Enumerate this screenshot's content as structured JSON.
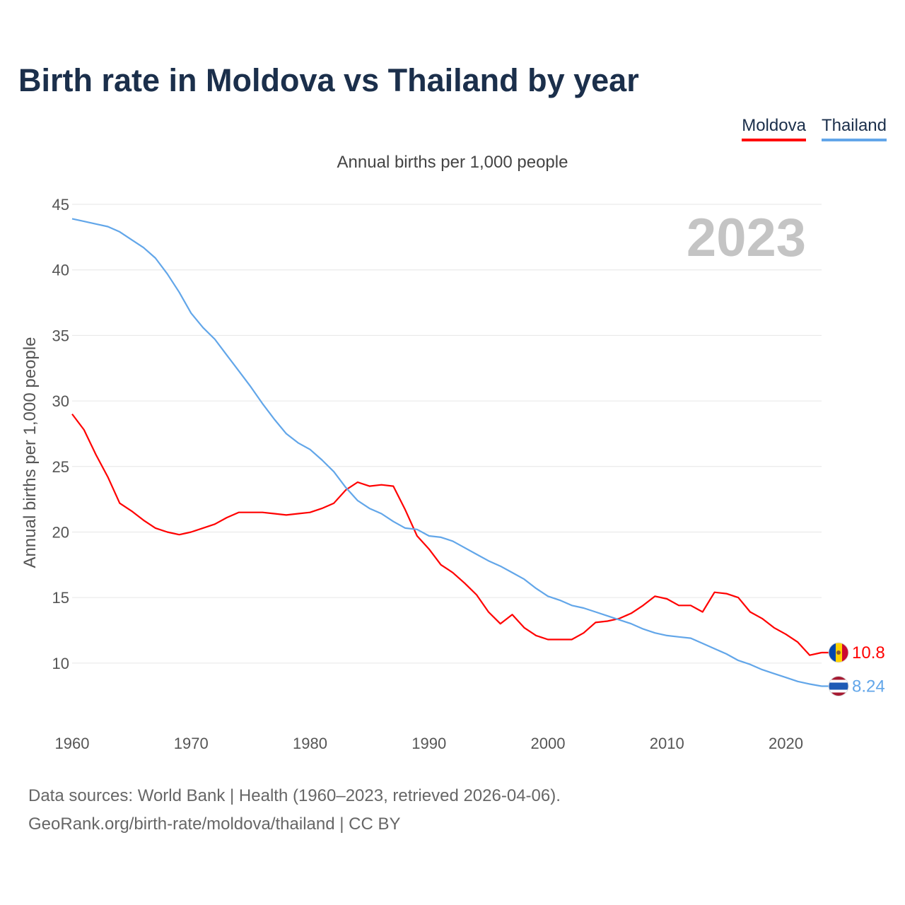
{
  "title": "Birth rate in Moldova vs Thailand by year",
  "subtitle": "Annual births per 1,000 people",
  "legend": [
    {
      "name": "Moldova",
      "color": "#ff0000"
    },
    {
      "name": "Thailand",
      "color": "#62a6e9"
    }
  ],
  "year_overlay": "2023",
  "footer": {
    "line1": "Data sources: World Bank | Health (1960–2023, retrieved 2026-04-06).",
    "line2": "GeoRank.org/birth-rate/moldova/thailand | CC BY"
  },
  "chart_data": {
    "type": "line",
    "title": "Birth rate in Moldova vs Thailand by year",
    "xlabel": "",
    "ylabel": "Annual births per 1,000 people",
    "xlim": [
      1960,
      2023
    ],
    "ylim": [
      6,
      45
    ],
    "xticks": [
      1960,
      1970,
      1980,
      1990,
      2000,
      2010,
      2020
    ],
    "yticks": [
      10,
      15,
      20,
      25,
      30,
      35,
      40,
      45
    ],
    "grid": true,
    "legend_position": "top-right",
    "x": [
      1960,
      1961,
      1962,
      1963,
      1964,
      1965,
      1966,
      1967,
      1968,
      1969,
      1970,
      1971,
      1972,
      1973,
      1974,
      1975,
      1976,
      1977,
      1978,
      1979,
      1980,
      1981,
      1982,
      1983,
      1984,
      1985,
      1986,
      1987,
      1988,
      1989,
      1990,
      1991,
      1992,
      1993,
      1994,
      1995,
      1996,
      1997,
      1998,
      1999,
      2000,
      2001,
      2002,
      2003,
      2004,
      2005,
      2006,
      2007,
      2008,
      2009,
      2010,
      2011,
      2012,
      2013,
      2014,
      2015,
      2016,
      2017,
      2018,
      2019,
      2020,
      2021,
      2022,
      2023
    ],
    "series": [
      {
        "name": "Moldova",
        "color": "#ff0000",
        "end_label": "10.8",
        "values": [
          29.0,
          27.8,
          25.9,
          24.2,
          22.2,
          21.6,
          20.9,
          20.3,
          20.0,
          19.8,
          20.0,
          20.3,
          20.6,
          21.1,
          21.5,
          21.5,
          21.5,
          21.4,
          21.3,
          21.4,
          21.5,
          21.8,
          22.2,
          23.2,
          23.8,
          23.5,
          23.6,
          23.5,
          21.7,
          19.7,
          18.7,
          17.5,
          16.9,
          16.1,
          15.2,
          13.9,
          13.0,
          13.7,
          12.7,
          12.1,
          11.8,
          11.8,
          11.8,
          12.3,
          13.1,
          13.2,
          13.4,
          13.8,
          14.4,
          15.1,
          14.9,
          14.4,
          14.4,
          13.9,
          15.4,
          15.3,
          15.0,
          13.9,
          13.4,
          12.7,
          12.2,
          11.6,
          10.6,
          10.8
        ]
      },
      {
        "name": "Thailand",
        "color": "#62a6e9",
        "end_label": "8.24",
        "values": [
          43.9,
          43.7,
          43.5,
          43.3,
          42.9,
          42.3,
          41.7,
          40.9,
          39.7,
          38.3,
          36.7,
          35.6,
          34.7,
          33.5,
          32.3,
          31.1,
          29.8,
          28.6,
          27.5,
          26.8,
          26.3,
          25.5,
          24.6,
          23.4,
          22.4,
          21.8,
          21.4,
          20.8,
          20.3,
          20.2,
          19.7,
          19.6,
          19.3,
          18.8,
          18.3,
          17.8,
          17.4,
          16.9,
          16.4,
          15.7,
          15.1,
          14.8,
          14.4,
          14.2,
          13.9,
          13.6,
          13.3,
          13.0,
          12.6,
          12.3,
          12.1,
          12.0,
          11.9,
          11.5,
          11.1,
          10.7,
          10.2,
          9.9,
          9.5,
          9.2,
          8.9,
          8.6,
          8.4,
          8.24
        ]
      }
    ]
  }
}
